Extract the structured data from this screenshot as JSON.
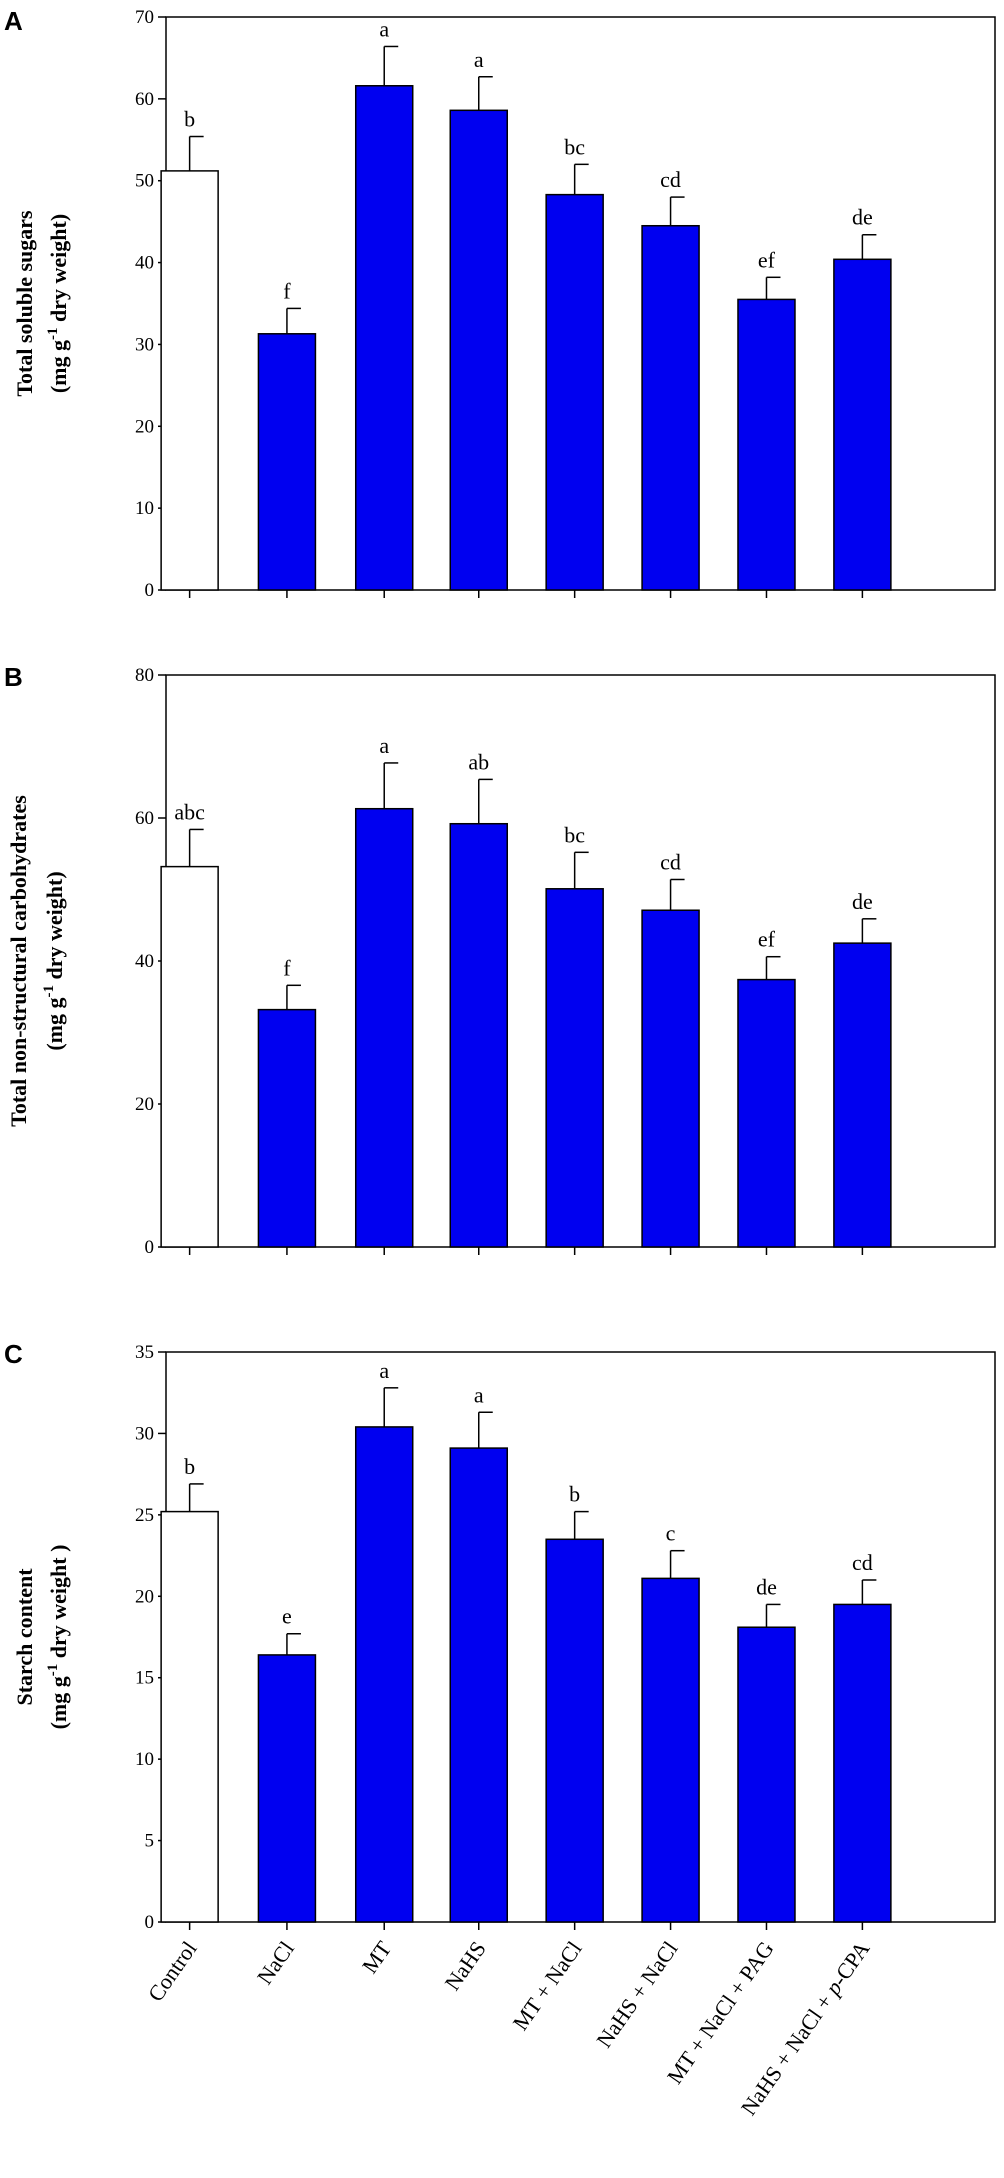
{
  "chart_data": [
    {
      "type": "bar",
      "panel": "A",
      "ylabel_line1": "Total soluble sugars",
      "ylabel_line2_pre": "(mg g",
      "ylabel_sup": "-1",
      "ylabel_line2_post": " dry weight)",
      "ylim": [
        0,
        70
      ],
      "yticks": [
        0,
        10,
        20,
        30,
        40,
        50,
        60,
        70
      ],
      "values": [
        51.2,
        31.3,
        61.6,
        58.6,
        48.3,
        44.5,
        35.5,
        40.4
      ],
      "errors": [
        4.2,
        3.1,
        4.8,
        4.1,
        3.7,
        3.5,
        2.7,
        3.0
      ],
      "labels": [
        "b",
        "f",
        "a",
        "a",
        "bc",
        "cd",
        "ef",
        "de"
      ]
    },
    {
      "type": "bar",
      "panel": "B",
      "ylabel_line1": "Total non-structural carbohydrates",
      "ylabel_line2_pre": "(mg g",
      "ylabel_sup": "-1",
      "ylabel_line2_post": " dry weight)",
      "ylim": [
        0,
        80
      ],
      "yticks": [
        0,
        20,
        40,
        60,
        80
      ],
      "values": [
        53.2,
        33.2,
        61.3,
        59.2,
        50.1,
        47.1,
        37.4,
        42.5
      ],
      "errors": [
        5.2,
        3.4,
        6.4,
        6.2,
        5.1,
        4.3,
        3.2,
        3.4
      ],
      "labels": [
        "abc",
        "f",
        "a",
        "ab",
        "bc",
        "cd",
        "ef",
        "de"
      ]
    },
    {
      "type": "bar",
      "panel": "C",
      "ylabel_line1": "Starch content",
      "ylabel_line2_pre": "(mg g",
      "ylabel_sup": "-1",
      "ylabel_line2_post": " dry weight )",
      "ylim": [
        0,
        35
      ],
      "yticks": [
        0,
        5,
        10,
        15,
        20,
        25,
        30,
        35
      ],
      "values": [
        25.2,
        16.4,
        30.4,
        29.1,
        23.5,
        21.1,
        18.1,
        19.5
      ],
      "errors": [
        1.7,
        1.3,
        2.4,
        2.2,
        1.7,
        1.7,
        1.4,
        1.5
      ],
      "labels": [
        "b",
        "e",
        "a",
        "a",
        "b",
        "c",
        "de",
        "cd"
      ]
    }
  ],
  "categories": [
    "Control",
    "NaCl",
    "MT",
    "NaHS",
    "MT + NaCl",
    "NaHS + NaCl",
    "MT + NaCl + PAG",
    "NaHS + NaCl + p-CPA"
  ],
  "last_category_parts": {
    "pre": "NaHS + NaCl + ",
    "italic": "p",
    "post": "-CPA"
  },
  "colors": {
    "control": "#ffffff",
    "treatment": "#0000f0",
    "stroke": "#000000"
  }
}
